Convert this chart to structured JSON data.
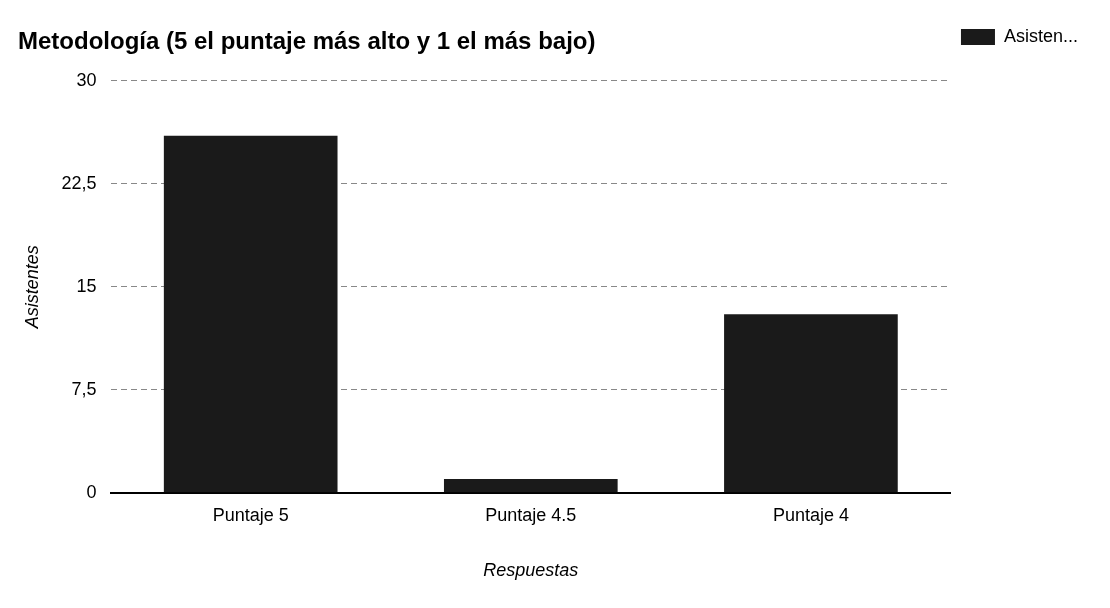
{
  "chart_data": {
    "type": "bar",
    "title": "Metodología (5 el puntaje más alto y 1 el más bajo)",
    "xlabel": "Respuestas",
    "ylabel": "Asistentes",
    "categories": [
      "Puntaje 5",
      "Puntaje 4.5",
      "Puntaje 4"
    ],
    "series": [
      {
        "name": "Asisten...",
        "color": "#1a1a1a",
        "values": [
          26,
          1,
          13
        ]
      }
    ],
    "ylim": [
      0,
      30
    ],
    "yticks": [
      0,
      {
        "value": 7.5,
        "label": "7,5"
      },
      15,
      {
        "value": 22.5,
        "label": "22,5"
      },
      30
    ],
    "grid": "y",
    "legend": "top right"
  }
}
